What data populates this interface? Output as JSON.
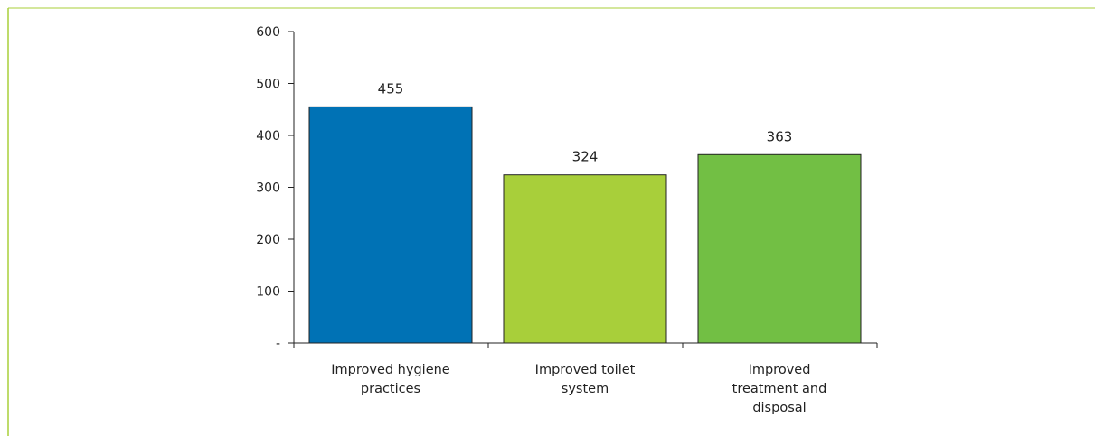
{
  "chart_data": {
    "type": "bar",
    "title": "",
    "xlabel": "",
    "ylabel": "",
    "categories": [
      [
        "Improved hygiene",
        "practices"
      ],
      [
        "Improved toilet",
        "system"
      ],
      [
        "Improved",
        "treatment and",
        "disposal"
      ]
    ],
    "values": [
      455,
      324,
      363
    ],
    "data_labels": [
      "455",
      "324",
      "363"
    ],
    "bar_colors": [
      "#0072b5",
      "#a8cf3a",
      "#72bf44"
    ],
    "ylim": [
      0,
      600
    ],
    "yticks": [
      0,
      100,
      200,
      300,
      400,
      500,
      600
    ],
    "ytick_labels": [
      "-",
      "100",
      "200",
      "300",
      "400",
      "500",
      "600"
    ],
    "grid": false,
    "legend": "none",
    "frame_color": "#a8cf3a",
    "axis_color": "#222222"
  }
}
